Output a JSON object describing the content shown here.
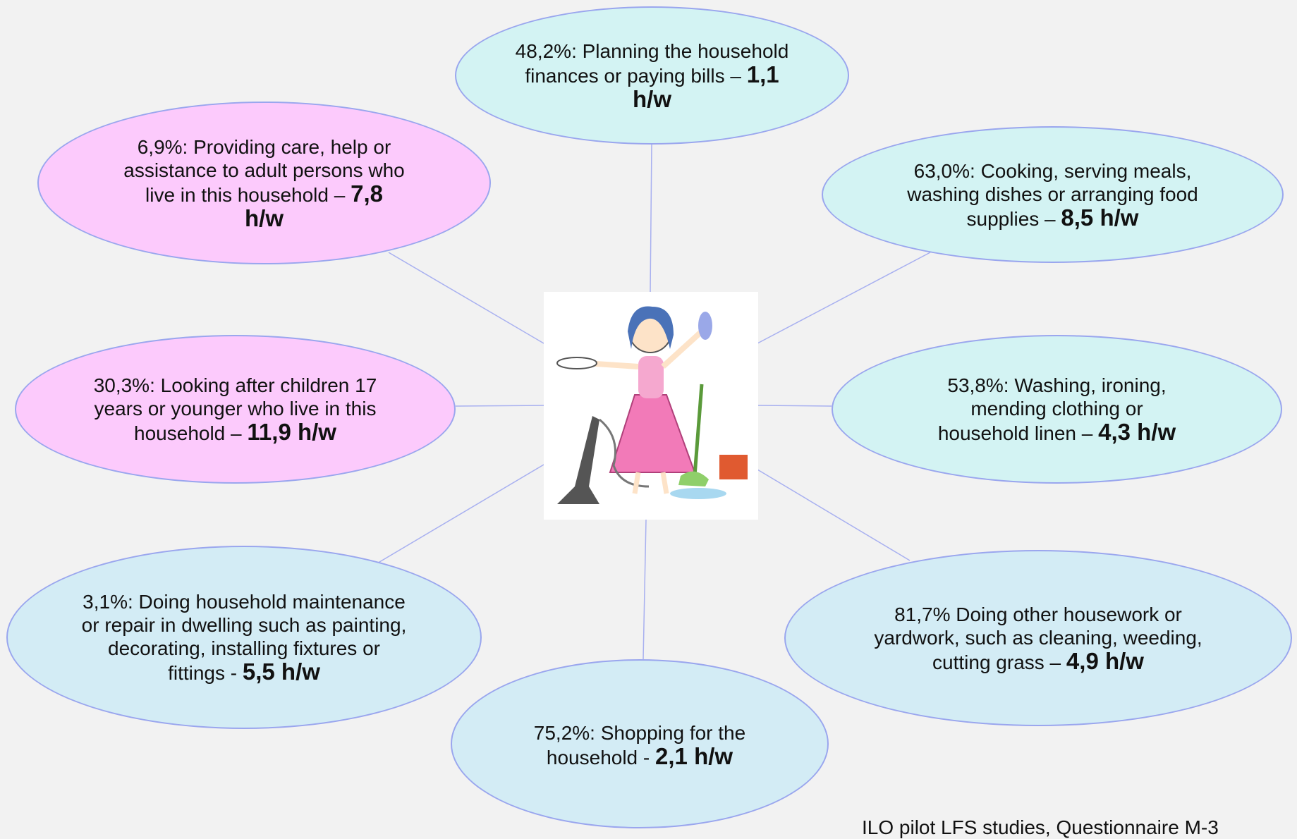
{
  "nodes": [
    {
      "text": "48,2%: Planning the household finances or paying bills –",
      "hours": "1,1 h/w"
    },
    {
      "text": "6,9%: Providing care, help or assistance to adult persons who live in this household –",
      "hours": "7,8 h/w"
    },
    {
      "text": "63,0%: Cooking, serving meals, washing dishes or arranging food supplies –",
      "hours": "8,5 h/w"
    },
    {
      "text": "30,3%: Looking after children 17 years or younger who live in this household –",
      "hours": "11,9 h/w"
    },
    {
      "text": "53,8%: Washing, ironing, mending clothing or household linen –",
      "hours": "4,3 h/w"
    },
    {
      "text": "3,1%: Doing household maintenance or repair in dwelling such as painting, decorating, installing fixtures or fittings -",
      "hours": "5,5 h/w"
    },
    {
      "text": "81,7% Doing other housework or yardwork, such as cleaning, weeding, cutting grass –",
      "hours": "4,9 h/w"
    },
    {
      "text": "75,2%: Shopping for the household -",
      "hours": "2,1 h/w"
    }
  ],
  "source": "ILO pilot LFS studies, Questionnaire M-3"
}
